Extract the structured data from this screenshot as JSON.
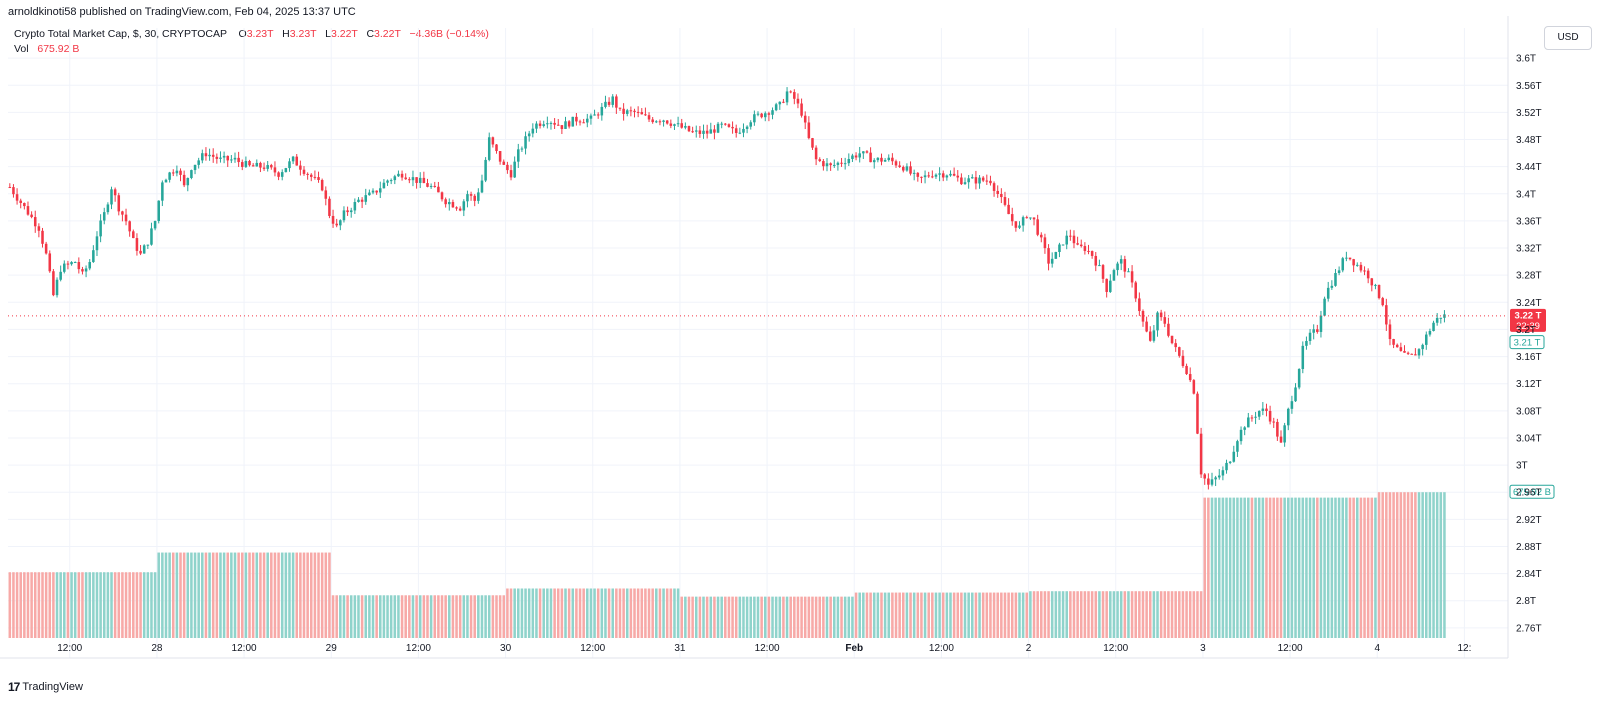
{
  "header": {
    "published": "arnoldkinoti58 published on TradingView.com, Feb 04, 2025 13:37 UTC"
  },
  "legend": {
    "symbol": "Crypto Total Market Cap, $, 30, CRYPTOCAP",
    "o_label": "O",
    "o_val": "3.23T",
    "h_label": "H",
    "h_val": "3.23T",
    "l_label": "L",
    "l_val": "3.22T",
    "c_label": "C",
    "c_val": "3.22T",
    "change": "−4.36B (−0.14%)",
    "vol_label": "Vol",
    "vol_val": "675.92 B"
  },
  "currency_button": "USD",
  "footer": {
    "brand": "TradingView",
    "logo": "17"
  },
  "colors": {
    "up": "#26a69a",
    "down": "#f23645",
    "up_vol": "#8fd3cb",
    "down_vol": "#f7a9a7",
    "grid": "#f0f3fa"
  },
  "chart_data": {
    "type": "candlestick",
    "y_axis_ticks": [
      "3.6T",
      "3.56T",
      "3.52T",
      "3.48T",
      "3.44T",
      "3.4T",
      "3.36T",
      "3.32T",
      "3.28T",
      "3.24T",
      "3.2T",
      "3.16T",
      "3.12T",
      "3.08T",
      "3.04T",
      "3T",
      "2.96T",
      "2.92T",
      "2.88T",
      "2.84T",
      "2.8T",
      "2.76T"
    ],
    "y_axis_values": [
      3.6,
      3.56,
      3.52,
      3.48,
      3.44,
      3.4,
      3.36,
      3.32,
      3.28,
      3.24,
      3.2,
      3.16,
      3.12,
      3.08,
      3.04,
      3.0,
      2.96,
      2.92,
      2.88,
      2.84,
      2.8,
      2.76
    ],
    "ylim": [
      2.745,
      3.615
    ],
    "x_axis_labels": [
      "12:00",
      "28",
      "12:00",
      "29",
      "12:00",
      "30",
      "12:00",
      "31",
      "12:00",
      "Feb",
      "12:00",
      "2",
      "12:00",
      "3",
      "12:00",
      "4",
      "12:"
    ],
    "x_axis_hours": [
      12,
      24,
      36,
      48,
      60,
      72,
      84,
      96,
      108,
      120,
      132,
      144,
      156,
      168,
      180,
      192,
      204
    ],
    "x_range_hours": [
      3.5,
      210
    ],
    "last_price_label": "3.22 T",
    "countdown": "22:39",
    "last_price_value": 3.22,
    "prev_close_label": "3.21 T",
    "prev_close_value": 3.21,
    "volume_last_label": "675.92 B",
    "path_points": [
      [
        4,
        3.41
      ],
      [
        6,
        3.38
      ],
      [
        8,
        3.35
      ],
      [
        9,
        3.31
      ],
      [
        10,
        3.25
      ],
      [
        11,
        3.29
      ],
      [
        13,
        3.3
      ],
      [
        14,
        3.28
      ],
      [
        15,
        3.3
      ],
      [
        16,
        3.34
      ],
      [
        17,
        3.37
      ],
      [
        18,
        3.41
      ],
      [
        19,
        3.38
      ],
      [
        20,
        3.36
      ],
      [
        21,
        3.33
      ],
      [
        22,
        3.31
      ],
      [
        23,
        3.33
      ],
      [
        24,
        3.36
      ],
      [
        25,
        3.42
      ],
      [
        26,
        3.43
      ],
      [
        27,
        3.44
      ],
      [
        28,
        3.41
      ],
      [
        29,
        3.44
      ],
      [
        31,
        3.46
      ],
      [
        33,
        3.45
      ],
      [
        35,
        3.45
      ],
      [
        37,
        3.44
      ],
      [
        39,
        3.44
      ],
      [
        41,
        3.43
      ],
      [
        43,
        3.45
      ],
      [
        45,
        3.43
      ],
      [
        47,
        3.41
      ],
      [
        48,
        3.37
      ],
      [
        49,
        3.35
      ],
      [
        50,
        3.37
      ],
      [
        52,
        3.39
      ],
      [
        54,
        3.4
      ],
      [
        56,
        3.42
      ],
      [
        58,
        3.43
      ],
      [
        60,
        3.42
      ],
      [
        62,
        3.41
      ],
      [
        64,
        3.39
      ],
      [
        66,
        3.38
      ],
      [
        67,
        3.4
      ],
      [
        68,
        3.39
      ],
      [
        69,
        3.42
      ],
      [
        70,
        3.48
      ],
      [
        71,
        3.46
      ],
      [
        72,
        3.44
      ],
      [
        73,
        3.43
      ],
      [
        74,
        3.46
      ],
      [
        75,
        3.48
      ],
      [
        76,
        3.5
      ],
      [
        78,
        3.51
      ],
      [
        80,
        3.5
      ],
      [
        82,
        3.51
      ],
      [
        84,
        3.51
      ],
      [
        86,
        3.53
      ],
      [
        87,
        3.54
      ],
      [
        88,
        3.52
      ],
      [
        90,
        3.52
      ],
      [
        92,
        3.51
      ],
      [
        94,
        3.51
      ],
      [
        96,
        3.5
      ],
      [
        98,
        3.49
      ],
      [
        100,
        3.49
      ],
      [
        102,
        3.5
      ],
      [
        104,
        3.49
      ],
      [
        106,
        3.51
      ],
      [
        108,
        3.52
      ],
      [
        110,
        3.53
      ],
      [
        111,
        3.55
      ],
      [
        112,
        3.54
      ],
      [
        113,
        3.52
      ],
      [
        114,
        3.48
      ],
      [
        115,
        3.45
      ],
      [
        117,
        3.44
      ],
      [
        119,
        3.45
      ],
      [
        121,
        3.46
      ],
      [
        123,
        3.45
      ],
      [
        125,
        3.45
      ],
      [
        127,
        3.44
      ],
      [
        129,
        3.42
      ],
      [
        131,
        3.43
      ],
      [
        133,
        3.43
      ],
      [
        135,
        3.42
      ],
      [
        137,
        3.42
      ],
      [
        139,
        3.42
      ],
      [
        140,
        3.4
      ],
      [
        141,
        3.38
      ],
      [
        142,
        3.36
      ],
      [
        143,
        3.35
      ],
      [
        144,
        3.37
      ],
      [
        145,
        3.36
      ],
      [
        146,
        3.33
      ],
      [
        147,
        3.3
      ],
      [
        148,
        3.31
      ],
      [
        149,
        3.33
      ],
      [
        150,
        3.34
      ],
      [
        151,
        3.32
      ],
      [
        152,
        3.32
      ],
      [
        153,
        3.31
      ],
      [
        154,
        3.29
      ],
      [
        155,
        3.26
      ],
      [
        156,
        3.29
      ],
      [
        157,
        3.3
      ],
      [
        158,
        3.28
      ],
      [
        159,
        3.25
      ],
      [
        160,
        3.21
      ],
      [
        161,
        3.18
      ],
      [
        162,
        3.22
      ],
      [
        163,
        3.21
      ],
      [
        164,
        3.18
      ],
      [
        165,
        3.16
      ],
      [
        166,
        3.14
      ],
      [
        167,
        3.11
      ],
      [
        168,
        2.99
      ],
      [
        169,
        2.97
      ],
      [
        170,
        2.98
      ],
      [
        171,
        2.99
      ],
      [
        172,
        3.01
      ],
      [
        173,
        3.04
      ],
      [
        174,
        3.06
      ],
      [
        175,
        3.07
      ],
      [
        176,
        3.08
      ],
      [
        177,
        3.08
      ],
      [
        178,
        3.06
      ],
      [
        179,
        3.03
      ],
      [
        180,
        3.08
      ],
      [
        181,
        3.12
      ],
      [
        182,
        3.17
      ],
      [
        183,
        3.19
      ],
      [
        184,
        3.2
      ],
      [
        185,
        3.25
      ],
      [
        186,
        3.27
      ],
      [
        187,
        3.29
      ],
      [
        188,
        3.31
      ],
      [
        189,
        3.3
      ],
      [
        190,
        3.29
      ],
      [
        191,
        3.28
      ],
      [
        192,
        3.26
      ],
      [
        193,
        3.24
      ],
      [
        194,
        3.18
      ],
      [
        195,
        3.17
      ],
      [
        196,
        3.16
      ],
      [
        197,
        3.16
      ],
      [
        198,
        3.17
      ],
      [
        199,
        3.19
      ],
      [
        200,
        3.21
      ],
      [
        201,
        3.22
      ]
    ],
    "volume_steps": [
      {
        "start": 3.5,
        "end": 24,
        "level": 2.842
      },
      {
        "start": 24,
        "end": 48,
        "level": 2.871
      },
      {
        "start": 48,
        "end": 72,
        "level": 2.808
      },
      {
        "start": 72,
        "end": 96,
        "level": 2.818
      },
      {
        "start": 96,
        "end": 120,
        "level": 2.806
      },
      {
        "start": 120,
        "end": 144,
        "level": 2.812
      },
      {
        "start": 144,
        "end": 168,
        "level": 2.814
      },
      {
        "start": 168,
        "end": 192,
        "level": 2.952
      },
      {
        "start": 192,
        "end": 201,
        "level": 2.96
      }
    ],
    "volume_floor": 2.745
  }
}
